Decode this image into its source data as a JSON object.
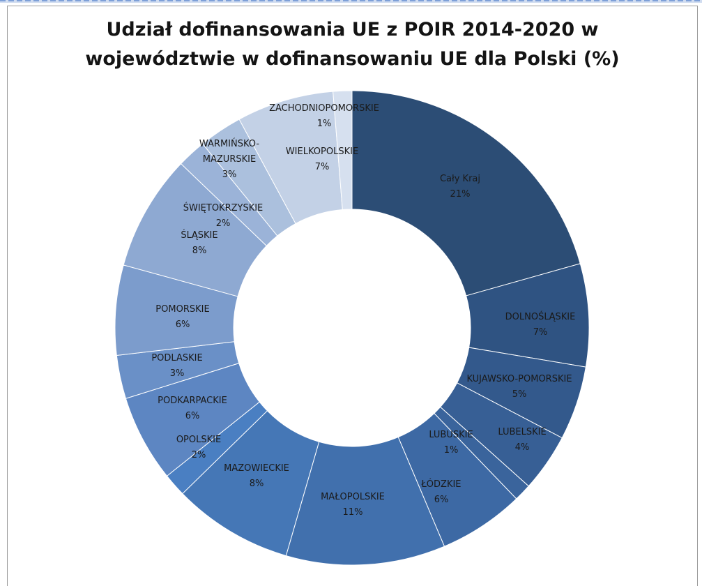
{
  "title_lines": [
    "Udział dofinansowania UE z POIR 2014-2020 w",
    "województwie  w dofinansowaniu UE dla Polski (%)"
  ],
  "chart_data": {
    "type": "pie",
    "variant": "doughnut",
    "title": "Udział dofinansowania UE z POIR 2014-2020 w województwie  w dofinansowaniu UE dla Polski (%)",
    "legend": "none",
    "categories": [
      "Cały Kraj",
      "DOLNOŚLĄSKIE",
      "KUJAWSKO-POMORSKIE",
      "LUBELSKIE",
      "LUBUSKIE",
      "ŁÓDZKIE",
      "MAŁOPOLSKIE",
      "MAZOWIECKIE",
      "OPOLSKIE",
      "PODKARPACKIE",
      "PODLASKIE",
      "POMORSKIE",
      "ŚLĄSKIE",
      "ŚWIĘTOKRZYSKIE",
      "WARMIŃSKO-MAZURSKIE",
      "WIELKOPOLSKIE",
      "ZACHODNIOPOMORSKIE"
    ],
    "values": [
      20.9,
      7.1,
      5.1,
      4.0,
      1.2,
      5.9,
      11.0,
      8.3,
      1.6,
      6.0,
      3.0,
      6.2,
      8.0,
      2.0,
      3.0,
      6.7,
      1.3
    ],
    "data_labels": [
      "21%",
      "7%",
      "5%",
      "4%",
      "1%",
      "6%",
      "11%",
      "8%",
      "2%",
      "6%",
      "3%",
      "6%",
      "8%",
      "2%",
      "3%",
      "7%",
      "1%"
    ],
    "colors": [
      "#2c4d75",
      "#2f5382",
      "#33598c",
      "#375f95",
      "#3a649c",
      "#3d69a4",
      "#4170ad",
      "#4577b6",
      "#4a7fc2",
      "#5d86c2",
      "#6a90c7",
      "#7c9ccc",
      "#8ea9d2",
      "#9bb3d8",
      "#abc0dd",
      "#c3d1e6",
      "#d6e0ef"
    ]
  }
}
